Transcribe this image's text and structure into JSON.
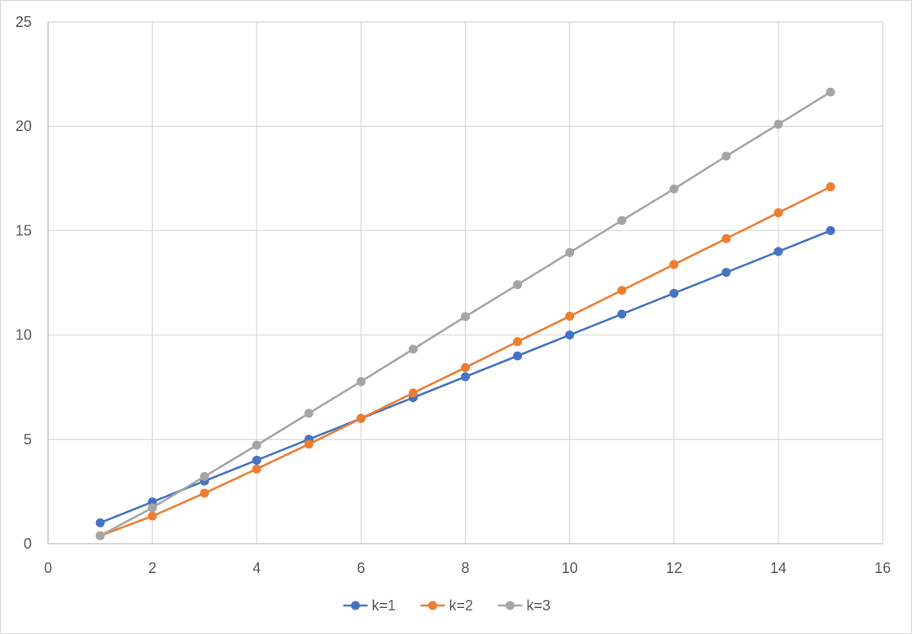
{
  "chart_data": {
    "type": "line",
    "title": "",
    "xlabel": "",
    "ylabel": "",
    "xlim": [
      0,
      16
    ],
    "ylim": [
      0,
      25
    ],
    "x_ticks": [
      0,
      2,
      4,
      6,
      8,
      10,
      12,
      14,
      16
    ],
    "y_ticks": [
      0,
      5,
      10,
      15,
      20,
      25
    ],
    "grid": true,
    "legend_position": "bottom",
    "x": [
      1,
      2,
      3,
      4,
      5,
      6,
      7,
      8,
      9,
      10,
      11,
      12,
      13,
      14,
      15
    ],
    "series": [
      {
        "name": "k=1",
        "color": "#4472c4",
        "values": [
          1,
          2,
          3,
          4,
          5,
          6,
          7,
          8,
          9,
          10,
          11,
          12,
          13,
          14,
          15
        ]
      },
      {
        "name": "k=2",
        "color": "#ed7d31",
        "values": [
          0.38,
          1.32,
          2.42,
          3.58,
          4.77,
          6.0,
          7.22,
          8.44,
          9.68,
          10.9,
          12.14,
          13.38,
          14.62,
          15.86,
          17.1
        ]
      },
      {
        "name": "k=3",
        "color": "#a5a5a5",
        "values": [
          0.38,
          1.72,
          3.22,
          4.72,
          6.25,
          7.77,
          9.32,
          10.88,
          12.41,
          13.95,
          15.49,
          17.0,
          18.57,
          20.1,
          21.64
        ]
      }
    ],
    "gridline_color": "#d9d9d9",
    "axis_line_color": "#bfbfbf"
  }
}
